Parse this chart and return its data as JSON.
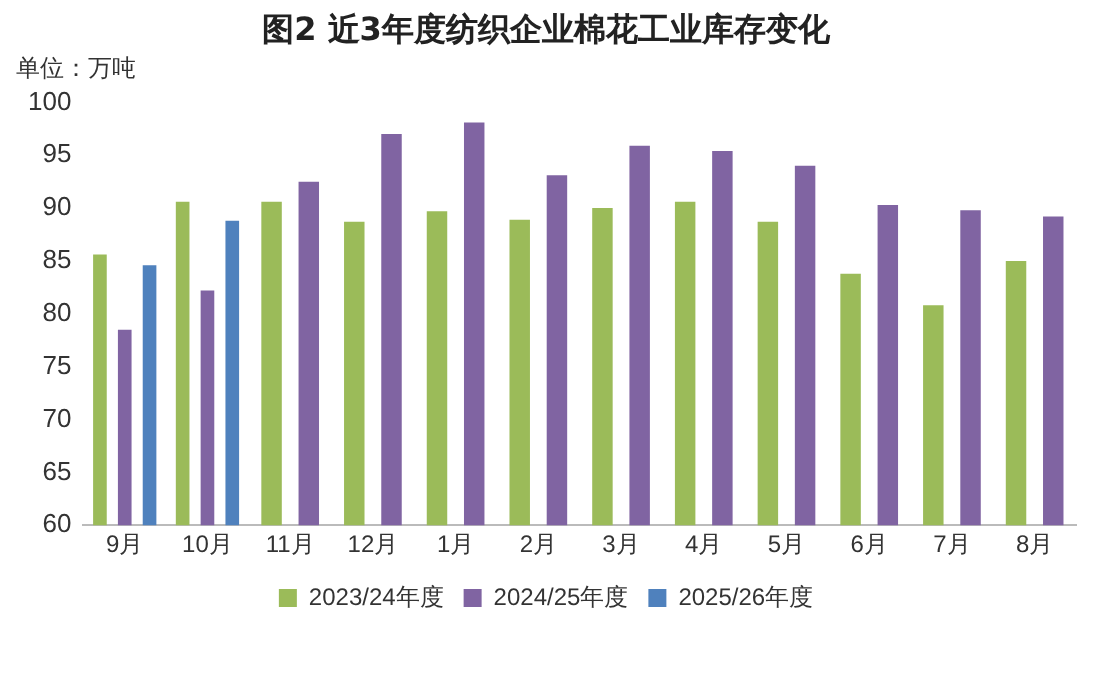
{
  "chart_data": {
    "type": "bar",
    "title": "图2 近3年度纺织企业棉花工业库存变化",
    "ylabel": "单位：万吨",
    "categories": [
      "9月",
      "10月",
      "11月",
      "12月",
      "1月",
      "2月",
      "3月",
      "4月",
      "5月",
      "6月",
      "7月",
      "8月"
    ],
    "series": [
      {
        "name": "2023/24年度",
        "color": "#9bbb59",
        "values": [
          85.6,
          90.6,
          90.6,
          88.7,
          89.7,
          88.9,
          90,
          90.6,
          88.7,
          83.8,
          80.8,
          85
        ]
      },
      {
        "name": "2024/25年度",
        "color": "#8064a2",
        "values": [
          78.5,
          82.2,
          92.5,
          97,
          98.1,
          93.1,
          95.9,
          95.4,
          94,
          90.3,
          89.8,
          89.2
        ]
      },
      {
        "name": "2025/26年度",
        "color": "#4f81bd",
        "values": [
          84.6,
          88.8,
          null,
          null,
          null,
          null,
          null,
          null,
          null,
          null,
          null,
          null
        ]
      }
    ],
    "ylim": [
      60,
      100
    ],
    "yticks": [
      60,
      65,
      70,
      75,
      80,
      85,
      90,
      95,
      100
    ],
    "grid": false,
    "legend": "bottom"
  }
}
